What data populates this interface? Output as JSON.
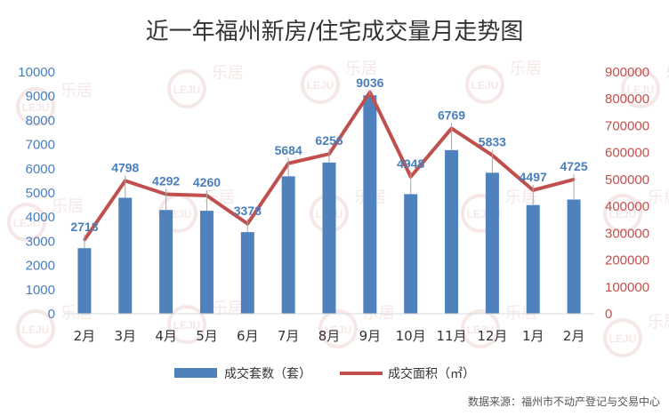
{
  "chart_data": {
    "type": "bar",
    "title": "近一年福州新房/住宅成交量月走势图",
    "categories": [
      "2月",
      "3月",
      "4月",
      "5月",
      "6月",
      "7月",
      "8月",
      "9月",
      "10月",
      "11月",
      "12月",
      "1月",
      "2月"
    ],
    "series": [
      {
        "name": "成交套数（套）",
        "type": "bar",
        "axis": "left",
        "color": "#4f81bd",
        "values": [
          2713,
          4798,
          4292,
          4260,
          3378,
          5684,
          6256,
          9036,
          4948,
          6769,
          5833,
          4497,
          4725
        ]
      },
      {
        "name": "成交面积（㎡）",
        "type": "line",
        "axis": "right",
        "color": "#c0504d",
        "values": [
          275000,
          495000,
          445000,
          440000,
          335000,
          560000,
          595000,
          825000,
          510000,
          690000,
          590000,
          460000,
          500000
        ]
      }
    ],
    "y_left": {
      "min": 0,
      "max": 10000,
      "ticks": [
        "0",
        "1000",
        "2000",
        "3000",
        "4000",
        "5000",
        "6000",
        "7000",
        "8000",
        "9000",
        "10000"
      ]
    },
    "y_right": {
      "min": 0,
      "max": 900000,
      "ticks": [
        "0",
        "100000",
        "200000",
        "300000",
        "400000",
        "500000",
        "600000",
        "700000",
        "800000",
        "900000"
      ]
    },
    "grid": false,
    "legend": "bottom"
  },
  "watermark": "LEJU 乐居",
  "source": "数据来源：福州市不动产登记与交易中心"
}
